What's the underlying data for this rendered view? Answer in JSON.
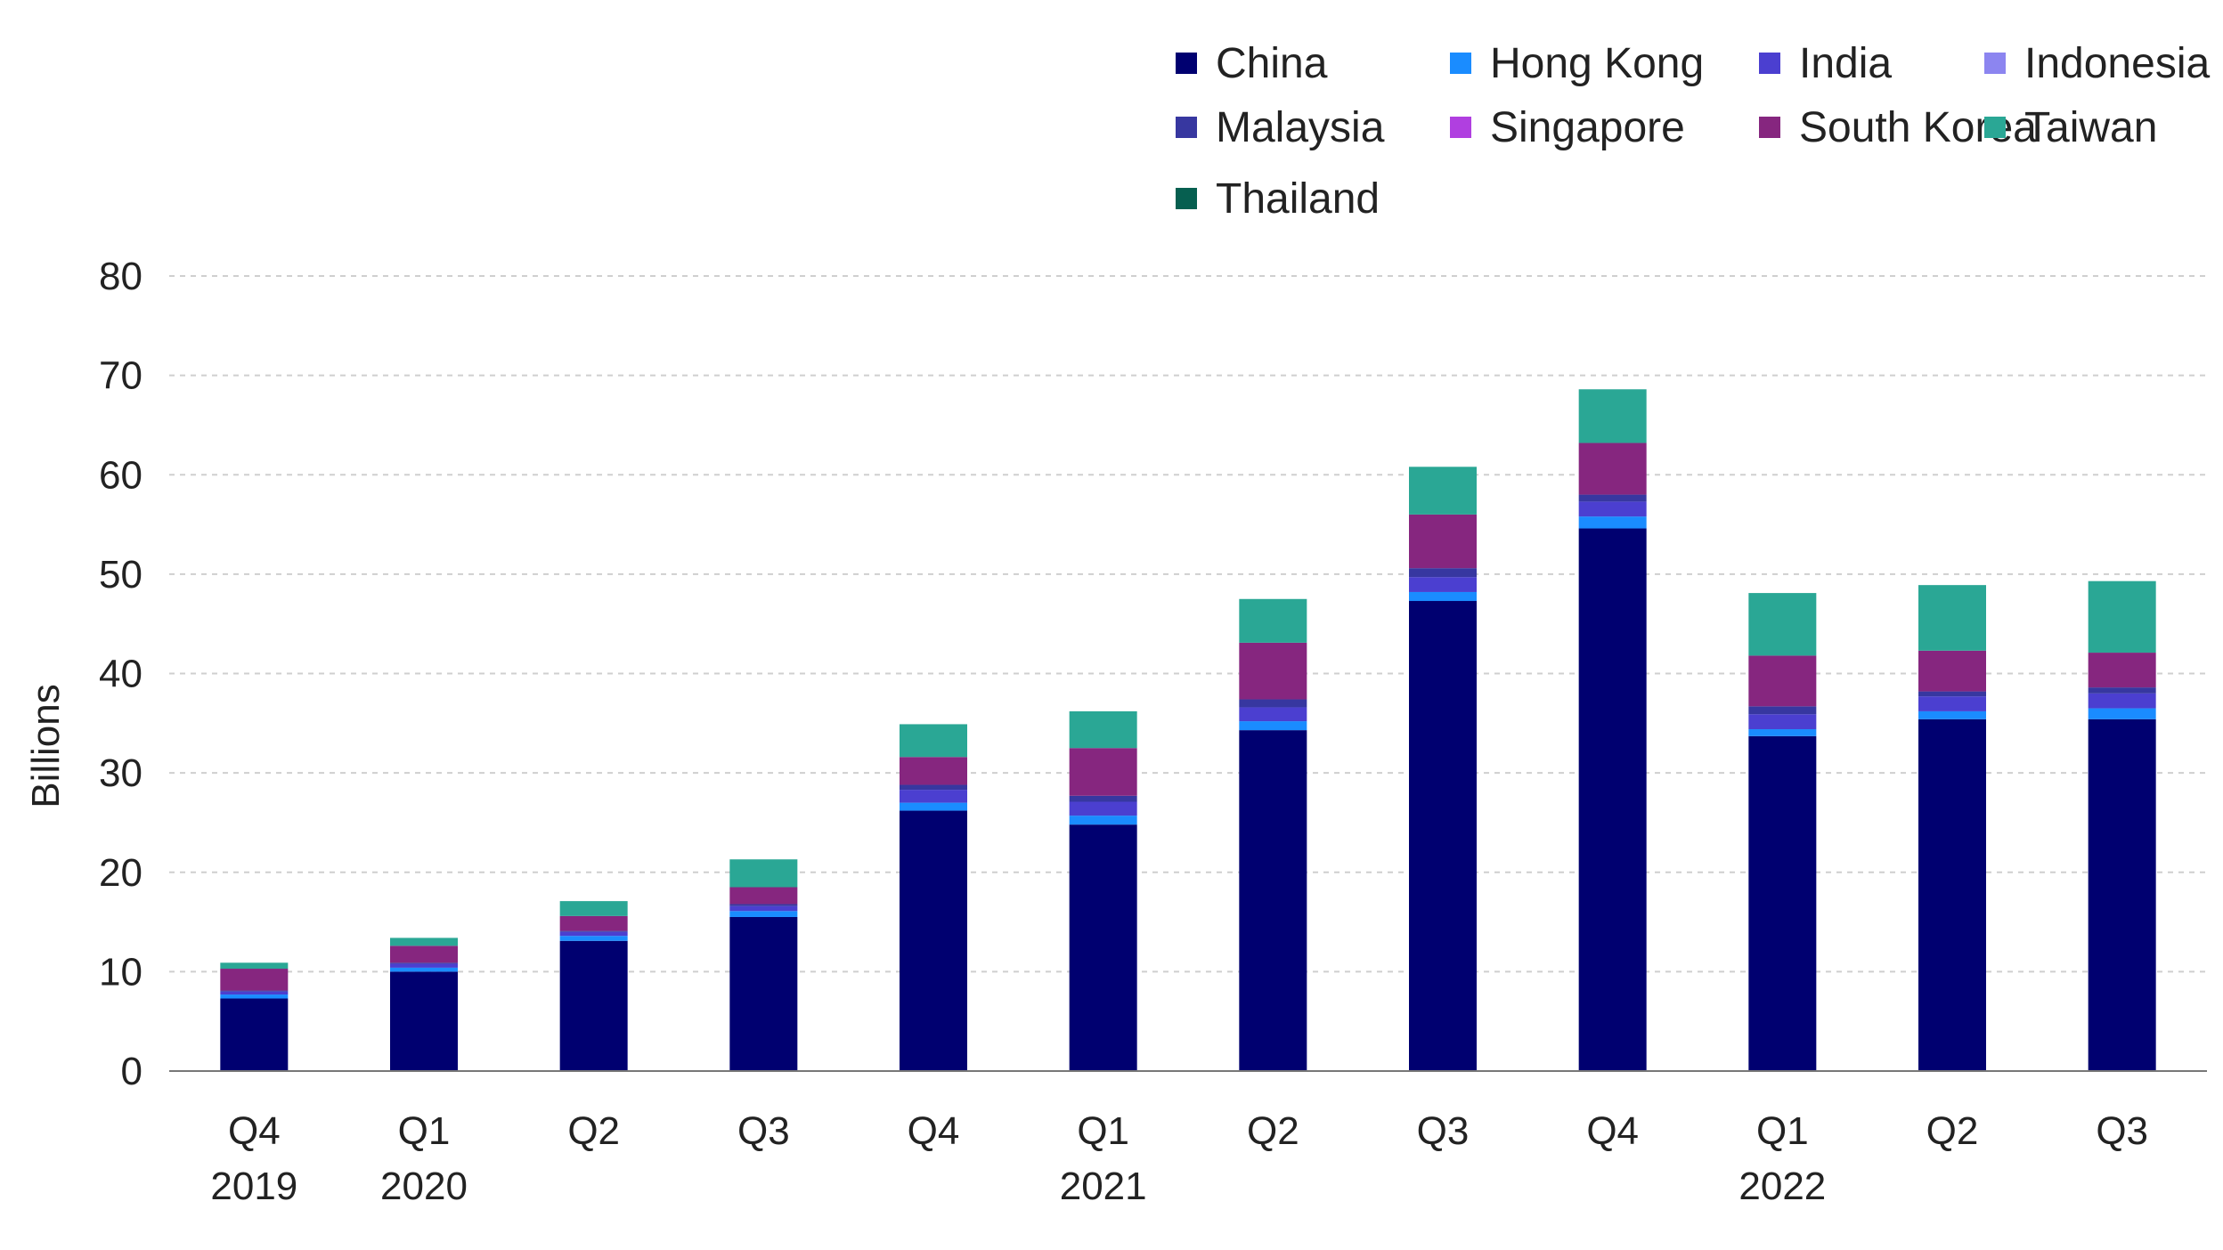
{
  "chart_data": {
    "type": "bar",
    "stacked": true,
    "ylabel": "Billions",
    "ylim": [
      0,
      80
    ],
    "yticks": [
      0,
      10,
      20,
      30,
      40,
      50,
      60,
      70,
      80
    ],
    "grid": true,
    "legend_position": "top-right",
    "categories": [
      "Q4",
      "Q1",
      "Q2",
      "Q3",
      "Q4",
      "Q1",
      "Q2",
      "Q3",
      "Q4",
      "Q1",
      "Q2",
      "Q3"
    ],
    "category_years": [
      "2019",
      "2020",
      "",
      "",
      "",
      "2021",
      "",
      "",
      "",
      "2022",
      "",
      ""
    ],
    "series": [
      {
        "name": "China",
        "color": "#000070",
        "values": [
          7.3,
          10.0,
          13.1,
          15.5,
          26.2,
          24.8,
          34.3,
          47.3,
          54.6,
          33.7,
          35.4,
          35.4
        ]
      },
      {
        "name": "Hong Kong",
        "color": "#1a8cff",
        "values": [
          0.4,
          0.4,
          0.5,
          0.6,
          0.8,
          0.9,
          0.9,
          0.9,
          1.2,
          0.7,
          0.8,
          1.1
        ]
      },
      {
        "name": "India",
        "color": "#4b3fd0",
        "values": [
          0.3,
          0.4,
          0.4,
          0.5,
          1.3,
          1.4,
          1.4,
          1.5,
          1.5,
          1.5,
          1.5,
          1.5
        ]
      },
      {
        "name": "Indonesia",
        "color": "#8c85f0",
        "values": [
          0.0,
          0.0,
          0.0,
          0.0,
          0.0,
          0.0,
          0.0,
          0.0,
          0.0,
          0.0,
          0.0,
          0.0
        ]
      },
      {
        "name": "Malaysia",
        "color": "#3737a0",
        "values": [
          0.1,
          0.1,
          0.1,
          0.2,
          0.5,
          0.6,
          0.8,
          0.9,
          0.7,
          0.8,
          0.5,
          0.6
        ]
      },
      {
        "name": "Singapore",
        "color": "#b03fe0",
        "values": [
          0.0,
          0.0,
          0.0,
          0.0,
          0.0,
          0.0,
          0.0,
          0.0,
          0.0,
          0.0,
          0.0,
          0.0
        ]
      },
      {
        "name": "South Korea",
        "color": "#86267f",
        "values": [
          2.2,
          1.7,
          1.5,
          1.7,
          2.8,
          4.8,
          5.7,
          5.4,
          5.2,
          5.1,
          4.1,
          3.5
        ]
      },
      {
        "name": "Taiwan",
        "color": "#2aa795",
        "values": [
          0.6,
          0.8,
          1.5,
          2.8,
          3.3,
          3.7,
          4.4,
          4.8,
          5.4,
          6.3,
          6.6,
          7.2
        ]
      },
      {
        "name": "Thailand",
        "color": "#065f50",
        "values": [
          0.0,
          0.0,
          0.0,
          0.0,
          0.0,
          0.0,
          0.0,
          0.0,
          0.0,
          0.0,
          0.0,
          0.0
        ]
      }
    ]
  }
}
